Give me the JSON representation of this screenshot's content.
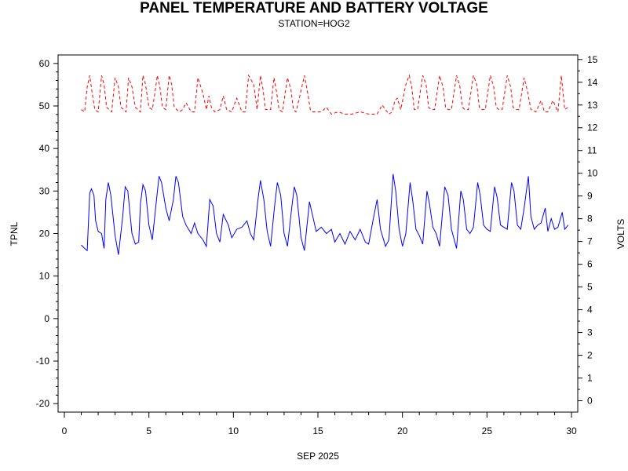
{
  "chart_data": {
    "type": "line",
    "title": "PANEL TEMPERATURE AND BATTERY VOLTAGE",
    "subtitle": "STATION=HOG2",
    "xlabel": "SEP 2025",
    "ylabel_left": "TPNL",
    "ylabel_right": "VOLTS",
    "xlim": [
      0,
      30
    ],
    "ylim_left": [
      -22,
      62
    ],
    "ylim_right": [
      -0.5,
      15.2
    ],
    "x_ticks": [
      0,
      5,
      10,
      15,
      20,
      25,
      30
    ],
    "y_ticks_left": [
      -20,
      -10,
      0,
      10,
      20,
      30,
      40,
      50,
      60
    ],
    "y_ticks_right": [
      0,
      1,
      2,
      3,
      4,
      5,
      6,
      7,
      8,
      9,
      10,
      11,
      12,
      13,
      14,
      15
    ],
    "grid": false,
    "series": [
      {
        "axis": "left",
        "color": "#0000ff",
        "style": "solid",
        "x": [
          1.0,
          1.2,
          1.35,
          1.5,
          1.6,
          1.75,
          1.85,
          2.0,
          2.2,
          2.35,
          2.45,
          2.6,
          2.75,
          3.0,
          3.2,
          3.45,
          3.6,
          3.75,
          4.0,
          4.2,
          4.4,
          4.5,
          4.65,
          4.8,
          5.0,
          5.2,
          5.45,
          5.6,
          5.75,
          6.0,
          6.2,
          6.45,
          6.6,
          6.75,
          7.0,
          7.2,
          7.5,
          7.7,
          7.9,
          8.2,
          8.4,
          8.6,
          8.8,
          9.0,
          9.2,
          9.4,
          9.7,
          9.9,
          10.2,
          10.5,
          10.8,
          11.0,
          11.2,
          11.45,
          11.6,
          11.8,
          12.0,
          12.2,
          12.45,
          12.6,
          12.8,
          13.0,
          13.2,
          13.45,
          13.6,
          13.75,
          14.0,
          14.2,
          14.5,
          14.7,
          14.9,
          15.2,
          15.5,
          15.8,
          16.0,
          16.3,
          16.6,
          16.9,
          17.2,
          17.5,
          17.8,
          18.0,
          18.3,
          18.5,
          18.7,
          19.0,
          19.2,
          19.45,
          19.6,
          19.8,
          20.0,
          20.2,
          20.45,
          20.6,
          20.8,
          21.0,
          21.2,
          21.45,
          21.6,
          21.8,
          22.0,
          22.2,
          22.5,
          22.7,
          22.9,
          23.2,
          23.45,
          23.6,
          23.8,
          24.0,
          24.2,
          24.45,
          24.6,
          24.8,
          25.0,
          25.2,
          25.45,
          25.6,
          25.8,
          26.0,
          26.2,
          26.45,
          26.6,
          26.8,
          27.0,
          27.2,
          27.45,
          27.6,
          27.8,
          28.0,
          28.2,
          28.45,
          28.6,
          28.8,
          29.0,
          29.2,
          29.45,
          29.6,
          29.8
        ],
        "y": [
          17.3,
          16.5,
          16.0,
          29.5,
          30.5,
          29.0,
          23.0,
          20.5,
          20.0,
          16.5,
          28.0,
          32.0,
          29.0,
          19.5,
          15.0,
          24.0,
          31.0,
          30.0,
          20.0,
          17.5,
          18.0,
          27.0,
          31.5,
          30.0,
          22.0,
          18.5,
          28.0,
          33.5,
          32.0,
          26.0,
          23.0,
          28.0,
          33.5,
          32.0,
          24.0,
          22.0,
          20.0,
          22.5,
          20.0,
          18.5,
          17.0,
          28.0,
          26.5,
          20.0,
          18.0,
          24.5,
          22.0,
          19.0,
          21.0,
          21.5,
          23.0,
          20.0,
          18.5,
          28.0,
          32.5,
          28.0,
          20.5,
          17.0,
          27.0,
          32.0,
          29.0,
          20.0,
          17.0,
          26.0,
          31.0,
          29.0,
          19.0,
          16.0,
          27.5,
          24.0,
          20.5,
          21.5,
          20.0,
          21.0,
          18.0,
          20.0,
          17.5,
          20.5,
          18.5,
          21.0,
          18.0,
          17.5,
          24.0,
          28.0,
          21.0,
          17.0,
          18.5,
          34.0,
          30.0,
          21.0,
          17.0,
          20.0,
          32.0,
          28.0,
          21.0,
          19.5,
          17.5,
          30.0,
          27.0,
          21.5,
          20.0,
          17.0,
          31.0,
          29.0,
          21.0,
          16.5,
          30.0,
          28.0,
          21.0,
          20.0,
          21.5,
          32.0,
          29.0,
          22.0,
          21.0,
          20.5,
          31.0,
          28.5,
          22.0,
          21.5,
          21.0,
          32.0,
          30.0,
          22.0,
          21.0,
          26.0,
          33.5,
          24.0,
          21.0,
          22.0,
          22.5,
          26.0,
          20.5,
          23.5,
          21.0,
          21.5,
          25.0,
          21.0,
          22.0
        ]
      },
      {
        "axis": "right",
        "color": "#ff0000",
        "style": "dashed",
        "x": [
          1.0,
          1.2,
          1.35,
          1.5,
          1.65,
          1.8,
          2.0,
          2.2,
          2.35,
          2.5,
          2.65,
          2.8,
          3.0,
          3.2,
          3.35,
          3.5,
          3.65,
          3.8,
          4.0,
          4.2,
          4.35,
          4.5,
          4.65,
          4.8,
          5.0,
          5.2,
          5.35,
          5.5,
          5.65,
          5.8,
          6.0,
          6.2,
          6.35,
          6.5,
          6.65,
          6.8,
          7.0,
          7.2,
          7.5,
          7.7,
          7.9,
          8.2,
          8.4,
          8.55,
          8.7,
          8.9,
          9.2,
          9.4,
          9.6,
          9.9,
          10.2,
          10.5,
          10.7,
          10.9,
          11.2,
          11.4,
          11.6,
          11.75,
          11.9,
          12.2,
          12.4,
          12.55,
          12.7,
          12.9,
          13.2,
          13.4,
          13.55,
          13.7,
          13.9,
          14.2,
          14.4,
          14.55,
          14.7,
          14.9,
          15.2,
          15.5,
          15.8,
          16.2,
          16.6,
          17.0,
          17.5,
          18.0,
          18.5,
          18.8,
          19.2,
          19.4,
          19.55,
          19.7,
          19.9,
          20.2,
          20.4,
          20.55,
          20.7,
          20.9,
          21.2,
          21.4,
          21.55,
          21.7,
          21.9,
          22.2,
          22.4,
          22.55,
          22.7,
          22.9,
          23.2,
          23.4,
          23.55,
          23.7,
          23.9,
          24.2,
          24.4,
          24.55,
          24.7,
          24.9,
          25.2,
          25.4,
          25.55,
          25.7,
          25.9,
          26.2,
          26.4,
          26.55,
          26.7,
          26.9,
          27.2,
          27.4,
          27.6,
          27.9,
          28.2,
          28.4,
          28.6,
          28.9,
          29.2,
          29.4,
          29.6,
          29.8
        ],
        "y": [
          12.8,
          12.7,
          13.8,
          14.3,
          13.5,
          12.8,
          12.7,
          14.3,
          13.9,
          12.9,
          12.8,
          12.7,
          14.2,
          13.8,
          12.9,
          12.8,
          12.7,
          14.2,
          13.8,
          12.9,
          12.8,
          12.7,
          14.3,
          13.9,
          12.9,
          12.8,
          13.5,
          14.3,
          13.8,
          12.9,
          12.8,
          14.3,
          13.9,
          12.9,
          12.8,
          12.7,
          12.8,
          13.1,
          12.7,
          12.7,
          14.2,
          13.5,
          12.8,
          13.4,
          12.9,
          12.7,
          12.8,
          13.4,
          12.8,
          12.7,
          13.3,
          12.7,
          12.7,
          14.3,
          13.9,
          12.8,
          14.3,
          13.7,
          12.8,
          12.8,
          14.2,
          13.6,
          12.8,
          12.7,
          14.2,
          13.7,
          12.8,
          12.7,
          13.3,
          14.3,
          13.5,
          12.8,
          12.7,
          12.7,
          12.7,
          12.9,
          12.6,
          12.7,
          12.6,
          12.6,
          12.7,
          12.6,
          12.6,
          13.0,
          12.6,
          12.7,
          13.2,
          13.3,
          12.8,
          13.9,
          14.3,
          13.8,
          12.8,
          12.8,
          14.3,
          13.9,
          12.9,
          12.8,
          12.8,
          14.3,
          13.8,
          12.9,
          12.8,
          12.8,
          14.3,
          13.8,
          12.9,
          12.8,
          12.8,
          14.3,
          13.9,
          12.9,
          12.8,
          12.8,
          14.3,
          13.8,
          12.9,
          12.8,
          12.8,
          14.3,
          13.8,
          12.9,
          12.8,
          12.8,
          14.2,
          13.6,
          12.8,
          12.7,
          13.2,
          12.7,
          12.7,
          13.2,
          12.7,
          14.3,
          12.8,
          12.9
        ]
      }
    ]
  }
}
